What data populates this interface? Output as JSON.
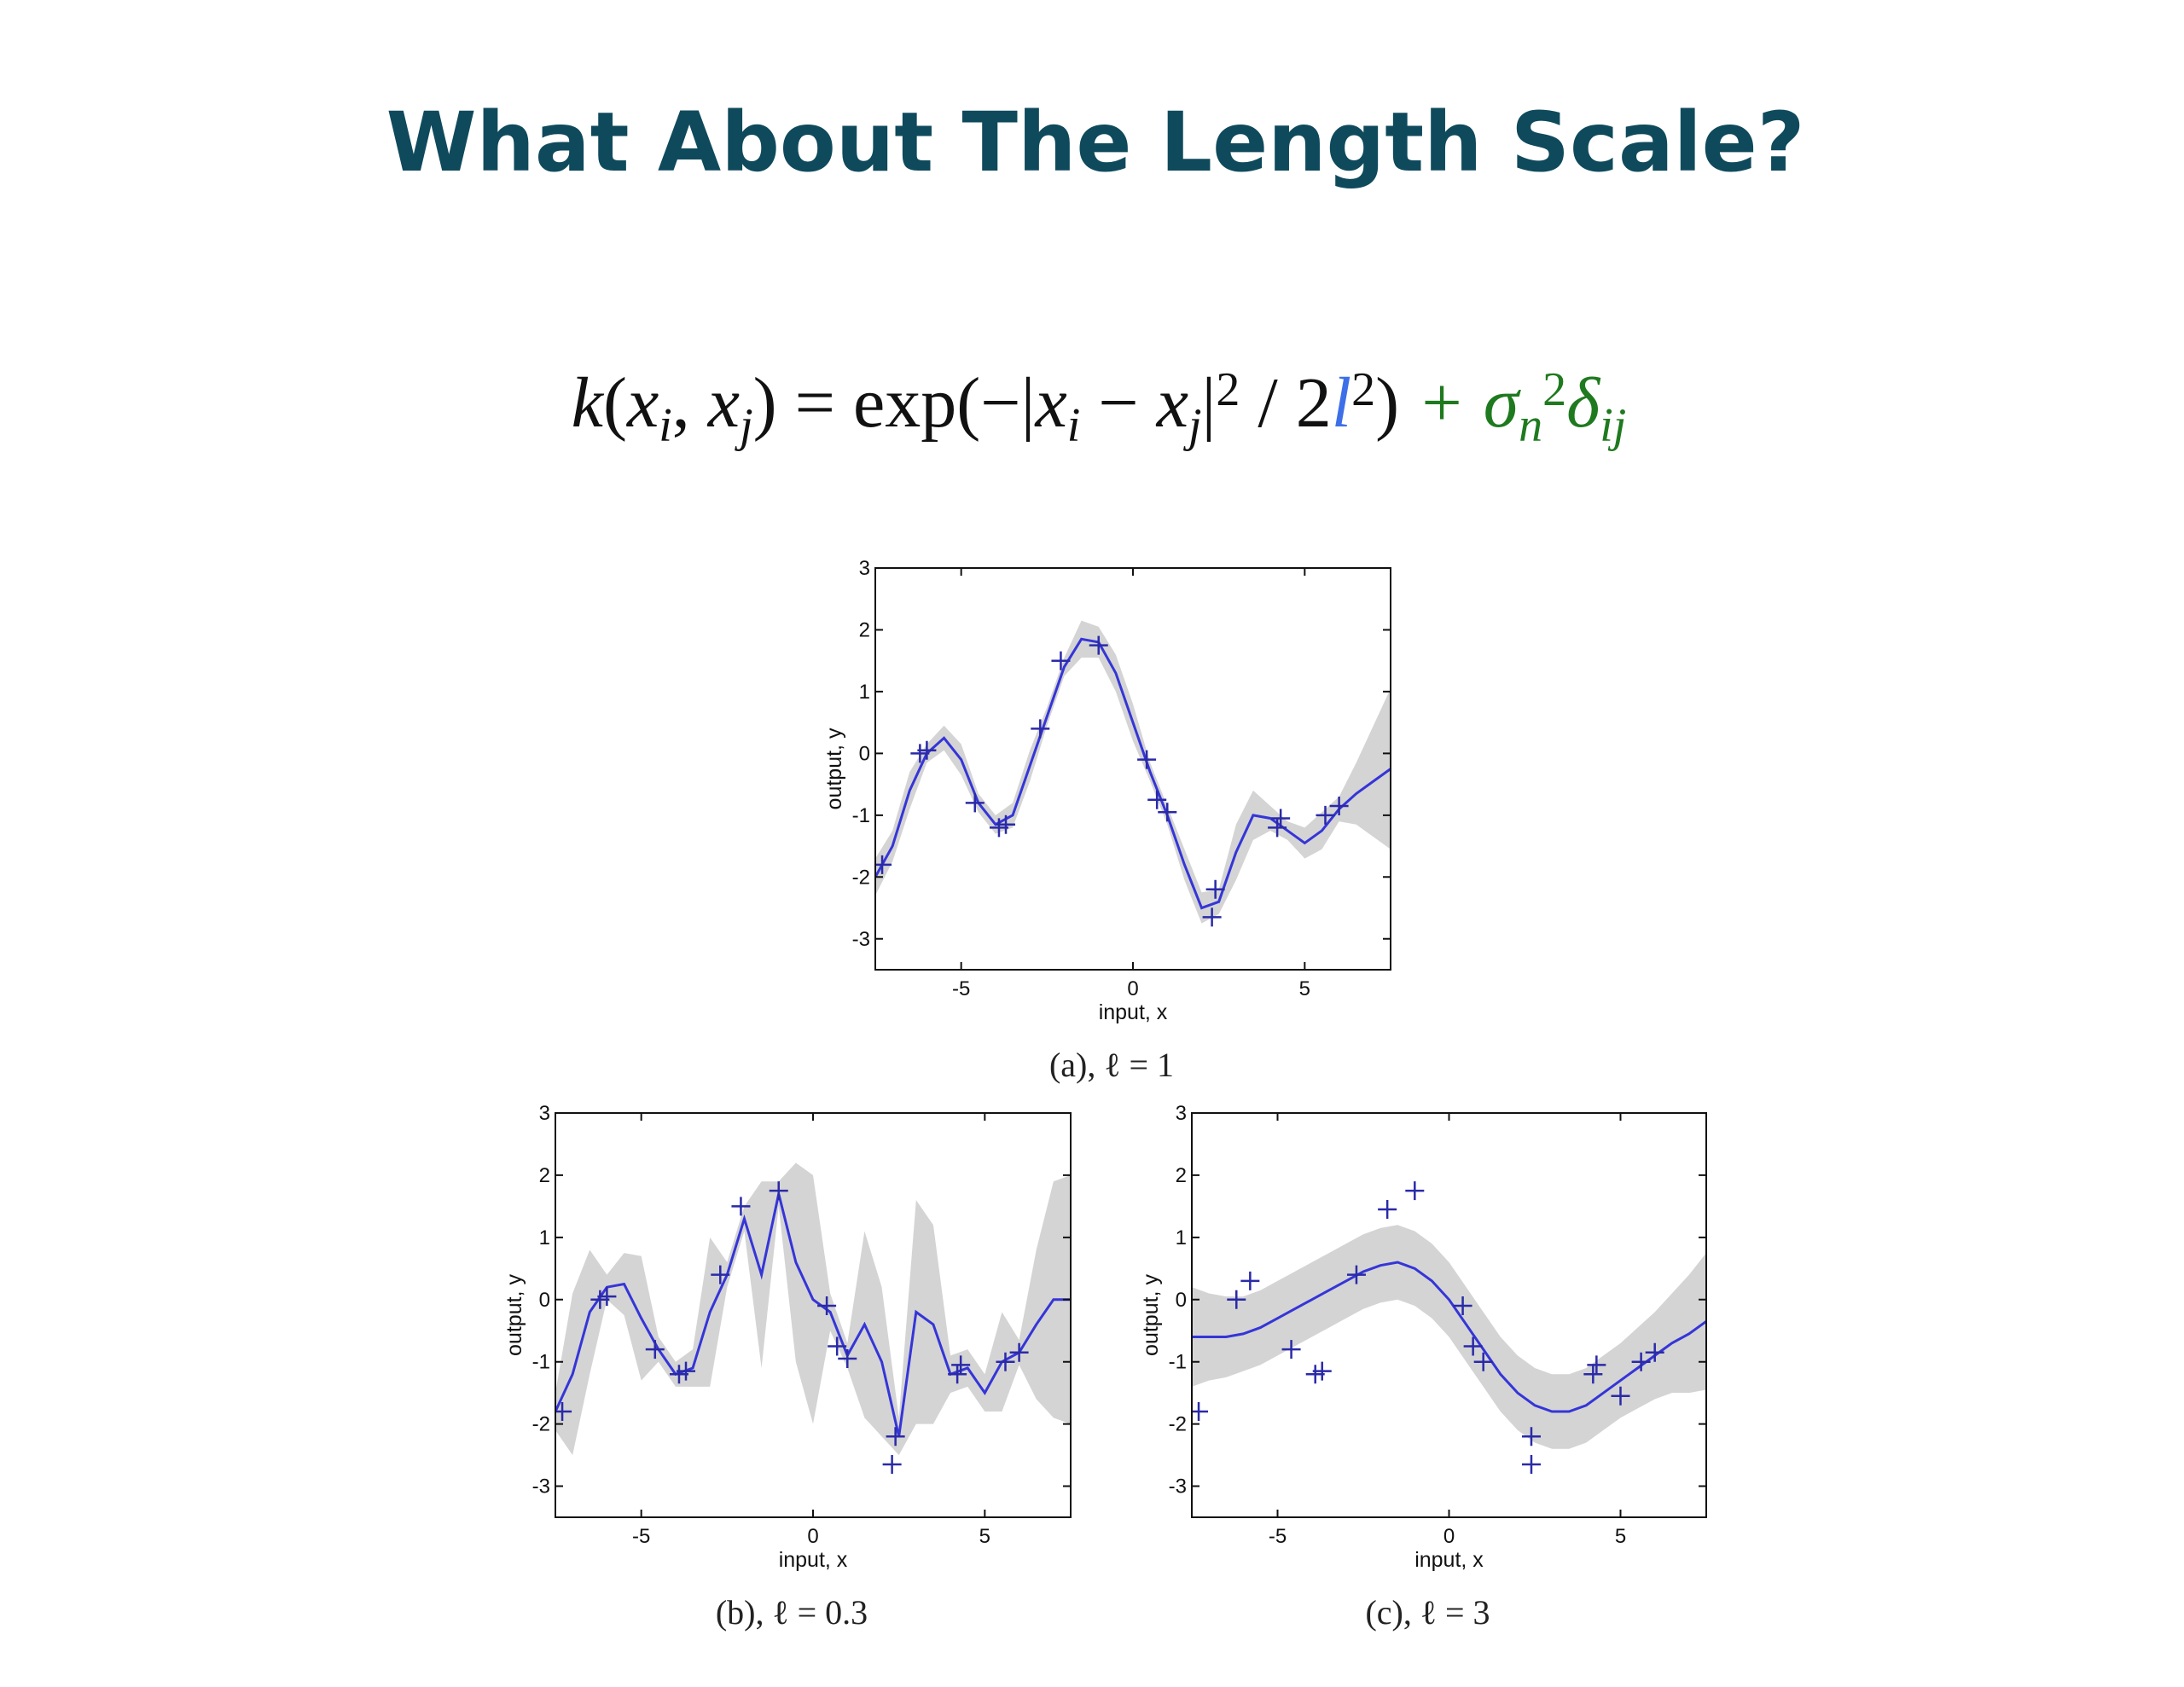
{
  "title": "What About The Length Scale?",
  "formula": [
    {
      "text": "k",
      "italic": true
    },
    {
      "text": "("
    },
    {
      "text": "x",
      "italic": true
    },
    {
      "text": "i",
      "pos": "sub",
      "italic": true
    },
    {
      "text": ", "
    },
    {
      "text": "x",
      "italic": true
    },
    {
      "text": "j",
      "pos": "sub",
      "italic": true
    },
    {
      "text": ") = exp(−|"
    },
    {
      "text": "x",
      "italic": true
    },
    {
      "text": "i",
      "pos": "sub",
      "italic": true
    },
    {
      "text": " − "
    },
    {
      "text": "x",
      "italic": true
    },
    {
      "text": "j",
      "pos": "sub",
      "italic": true
    },
    {
      "text": "|"
    },
    {
      "text": "2",
      "pos": "sup"
    },
    {
      "text": " / 2"
    },
    {
      "text": "l",
      "italic": true,
      "color": "#3d6fe8"
    },
    {
      "text": "2",
      "pos": "sup"
    },
    {
      "text": ")"
    },
    {
      "text": " + σ",
      "italic": true,
      "color": "#1f7a1f"
    },
    {
      "text": "n",
      "pos": "sub",
      "italic": true,
      "color": "#1f7a1f"
    },
    {
      "text": "2",
      "pos": "sup",
      "color": "#1f7a1f"
    },
    {
      "text": "δ",
      "italic": true,
      "color": "#1f7a1f"
    },
    {
      "text": "ij",
      "pos": "sub",
      "italic": true,
      "color": "#1f7a1f"
    }
  ],
  "chart_data": [
    {
      "type": "gp",
      "caption": "(a), ℓ = 1",
      "x_label": "input, x",
      "y_label": "output, y",
      "xlim": [
        -7.5,
        7.5
      ],
      "ylim": [
        -3.5,
        3
      ],
      "xticks": [
        -5,
        0,
        5
      ],
      "yticks": [
        -3,
        -2,
        -1,
        0,
        1,
        2,
        3
      ],
      "line_color": "#3535d8",
      "band_color": "#d4d4d4",
      "point_color": "#2a2aa8",
      "x": [
        -7.5,
        -7,
        -6.5,
        -6,
        -5.5,
        -5,
        -4.5,
        -4,
        -3.5,
        -3,
        -2.5,
        -2,
        -1.5,
        -1,
        -0.5,
        0,
        0.5,
        1,
        1.5,
        2,
        2.5,
        3,
        3.5,
        4,
        4.5,
        5,
        5.5,
        6,
        6.5,
        7,
        7.5
      ],
      "mean": [
        -2.0,
        -1.5,
        -0.6,
        0.0,
        0.25,
        -0.1,
        -0.8,
        -1.15,
        -1.0,
        -0.2,
        0.6,
        1.4,
        1.85,
        1.8,
        1.3,
        0.5,
        -0.3,
        -1.0,
        -1.8,
        -2.5,
        -2.4,
        -1.6,
        -1.0,
        -1.05,
        -1.25,
        -1.45,
        -1.25,
        -0.9,
        -0.65,
        -0.45,
        -0.25
      ],
      "spread": [
        0.3,
        0.25,
        0.3,
        0.15,
        0.2,
        0.25,
        0.15,
        0.15,
        0.2,
        0.25,
        0.15,
        0.15,
        0.3,
        0.25,
        0.3,
        0.3,
        0.15,
        0.15,
        0.25,
        0.25,
        0.2,
        0.45,
        0.4,
        0.2,
        0.15,
        0.25,
        0.3,
        0.2,
        0.5,
        0.9,
        1.3
      ],
      "points_x": [
        -7.3,
        -6.2,
        -6.0,
        -4.6,
        -3.9,
        -3.7,
        -2.7,
        -2.1,
        -1.0,
        0.4,
        0.7,
        1.0,
        2.4,
        2.3,
        4.2,
        4.3,
        5.6,
        6.0
      ],
      "points_y": [
        -1.8,
        0.0,
        0.05,
        -0.8,
        -1.2,
        -1.15,
        0.4,
        1.5,
        1.75,
        -0.1,
        -0.75,
        -0.95,
        -2.2,
        -2.65,
        -1.2,
        -1.05,
        -1.0,
        -0.85
      ]
    },
    {
      "type": "gp",
      "caption": "(b), ℓ = 0.3",
      "x_label": "input, x",
      "y_label": "output, y",
      "xlim": [
        -7.5,
        7.5
      ],
      "ylim": [
        -3.5,
        3
      ],
      "xticks": [
        -5,
        0,
        5
      ],
      "yticks": [
        -3,
        -2,
        -1,
        0,
        1,
        2,
        3
      ],
      "line_color": "#3535d8",
      "band_color": "#d4d4d4",
      "point_color": "#2a2aa8",
      "x": [
        -7.5,
        -7,
        -6.5,
        -6,
        -5.5,
        -5,
        -4.5,
        -4,
        -3.5,
        -3,
        -2.5,
        -2,
        -1.5,
        -1,
        -0.5,
        0,
        0.5,
        1,
        1.5,
        2,
        2.5,
        3,
        3.5,
        4,
        4.5,
        5,
        5.5,
        6,
        6.5,
        7,
        7.5
      ],
      "mean": [
        -1.8,
        -1.2,
        -0.2,
        0.2,
        0.25,
        -0.3,
        -0.8,
        -1.2,
        -1.1,
        -0.2,
        0.4,
        1.3,
        0.4,
        1.7,
        0.6,
        0.0,
        -0.2,
        -0.9,
        -0.4,
        -1.0,
        -2.2,
        -0.2,
        -0.4,
        -1.2,
        -1.1,
        -1.5,
        -1.0,
        -0.85,
        -0.4,
        0.0,
        0.0
      ],
      "spread": [
        0.3,
        1.3,
        1.0,
        0.2,
        0.5,
        1.0,
        0.2,
        0.2,
        0.3,
        1.2,
        0.2,
        0.2,
        1.5,
        0.2,
        1.6,
        2.0,
        0.3,
        0.2,
        1.5,
        1.2,
        0.3,
        1.8,
        1.6,
        0.3,
        0.3,
        0.3,
        0.8,
        0.2,
        1.2,
        1.9,
        2.0
      ],
      "points_x": [
        -7.3,
        -6.2,
        -6.0,
        -4.6,
        -3.9,
        -3.7,
        -2.7,
        -2.1,
        -1.0,
        0.4,
        0.7,
        1.0,
        2.4,
        2.3,
        4.2,
        4.3,
        5.6,
        6.0
      ],
      "points_y": [
        -1.8,
        0.0,
        0.05,
        -0.8,
        -1.2,
        -1.15,
        0.4,
        1.5,
        1.75,
        -0.1,
        -0.75,
        -0.95,
        -2.2,
        -2.65,
        -1.2,
        -1.05,
        -1.0,
        -0.85
      ]
    },
    {
      "type": "gp",
      "caption": "(c), ℓ = 3",
      "x_label": "input, x",
      "y_label": "output, y",
      "xlim": [
        -7.5,
        7.5
      ],
      "ylim": [
        -3.5,
        3
      ],
      "xticks": [
        -5,
        0,
        5
      ],
      "yticks": [
        -3,
        -2,
        -1,
        0,
        1,
        2,
        3
      ],
      "line_color": "#3535d8",
      "band_color": "#d4d4d4",
      "point_color": "#2a2aa8",
      "x": [
        -7.5,
        -7,
        -6.5,
        -6,
        -5.5,
        -5,
        -4.5,
        -4,
        -3.5,
        -3,
        -2.5,
        -2,
        -1.5,
        -1,
        -0.5,
        0,
        0.5,
        1,
        1.5,
        2,
        2.5,
        3,
        3.5,
        4,
        4.5,
        5,
        5.5,
        6,
        6.5,
        7,
        7.5
      ],
      "mean": [
        -0.6,
        -0.6,
        -0.6,
        -0.55,
        -0.45,
        -0.3,
        -0.15,
        0.0,
        0.15,
        0.3,
        0.45,
        0.55,
        0.6,
        0.5,
        0.3,
        0.0,
        -0.4,
        -0.8,
        -1.2,
        -1.5,
        -1.7,
        -1.8,
        -1.8,
        -1.7,
        -1.5,
        -1.3,
        -1.1,
        -0.9,
        -0.7,
        -0.55,
        -0.35
      ],
      "spread": [
        0.8,
        0.7,
        0.65,
        0.6,
        0.6,
        0.6,
        0.6,
        0.6,
        0.6,
        0.6,
        0.6,
        0.6,
        0.6,
        0.6,
        0.6,
        0.6,
        0.6,
        0.6,
        0.6,
        0.6,
        0.6,
        0.6,
        0.6,
        0.6,
        0.6,
        0.6,
        0.65,
        0.7,
        0.8,
        0.95,
        1.1
      ],
      "points_x": [
        -7.3,
        -6.2,
        -5.8,
        -4.6,
        -3.9,
        -3.7,
        -2.7,
        -1.8,
        -1.0,
        0.4,
        0.7,
        1.0,
        2.4,
        2.4,
        4.2,
        4.3,
        5.0,
        5.6,
        6.0
      ],
      "points_y": [
        -1.8,
        0.0,
        0.3,
        -0.8,
        -1.2,
        -1.15,
        0.4,
        1.45,
        1.75,
        -0.1,
        -0.75,
        -1.0,
        -2.2,
        -2.65,
        -1.2,
        -1.05,
        -1.55,
        -1.0,
        -0.85
      ]
    }
  ]
}
